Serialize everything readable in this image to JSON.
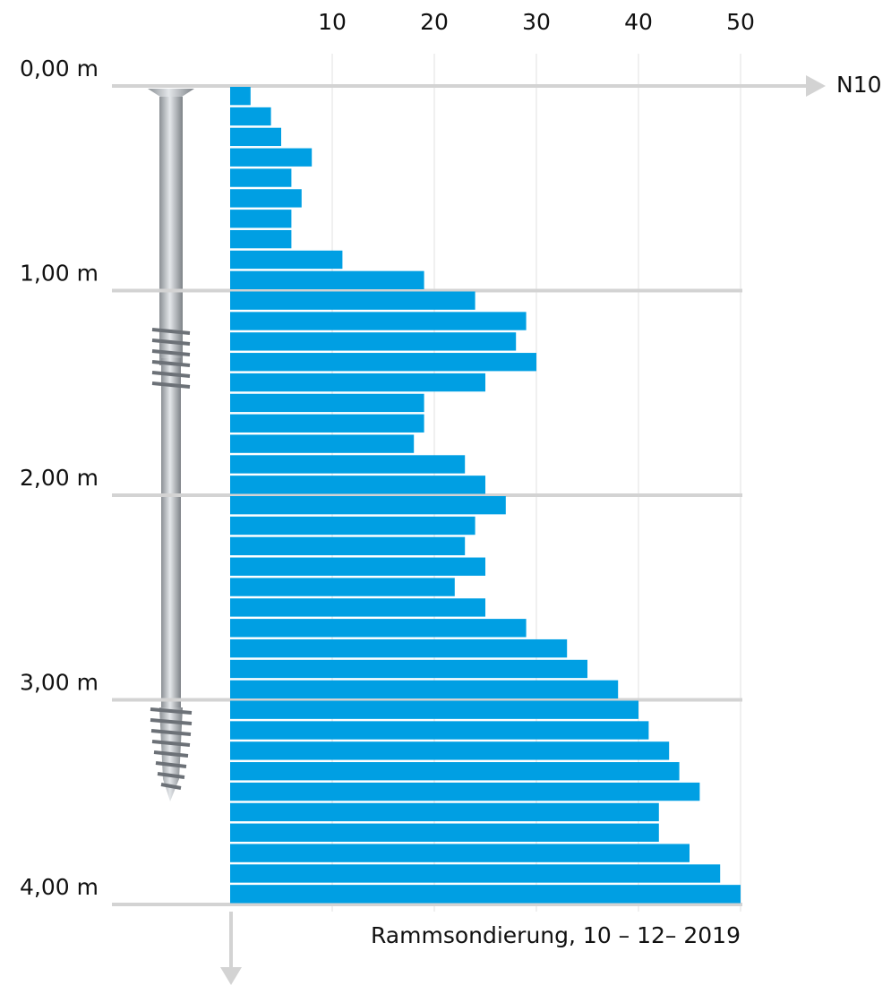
{
  "chart_data": {
    "type": "bar",
    "orientation": "horizontal",
    "x_label": "N10",
    "caption": "Rammsondierung, 10 – 12– 2019",
    "categories": [
      null,
      null,
      null,
      null,
      null,
      null,
      null,
      null,
      null,
      null,
      null,
      null,
      null,
      null,
      null,
      null,
      null,
      null,
      null,
      null,
      null,
      null,
      null,
      null,
      null,
      null,
      null,
      null,
      null,
      null,
      null,
      null,
      null,
      null,
      null,
      null,
      null,
      null,
      null,
      null
    ],
    "values": [
      2,
      4,
      5,
      8,
      6,
      7,
      6,
      6,
      11,
      19,
      24,
      29,
      28,
      30,
      25,
      19,
      19,
      18,
      23,
      25,
      27,
      24,
      23,
      25,
      22,
      25,
      29,
      33,
      35,
      38,
      40,
      41,
      43,
      44,
      46,
      42,
      42,
      45,
      48,
      50
    ],
    "color": "#009fe3",
    "xlim": [
      0,
      50
    ],
    "xticks": [
      10,
      20,
      30,
      40,
      50
    ],
    "ylim": [
      0,
      4
    ],
    "y_inverted": true,
    "yticks": [
      {
        "value": 0,
        "label": "0,00 m"
      },
      {
        "value": 1,
        "label": "1,00 m"
      },
      {
        "value": 2,
        "label": "2,00 m"
      },
      {
        "value": 3,
        "label": "3,00 m"
      },
      {
        "value": 4,
        "label": "4,00 m"
      }
    ],
    "grid": true
  }
}
